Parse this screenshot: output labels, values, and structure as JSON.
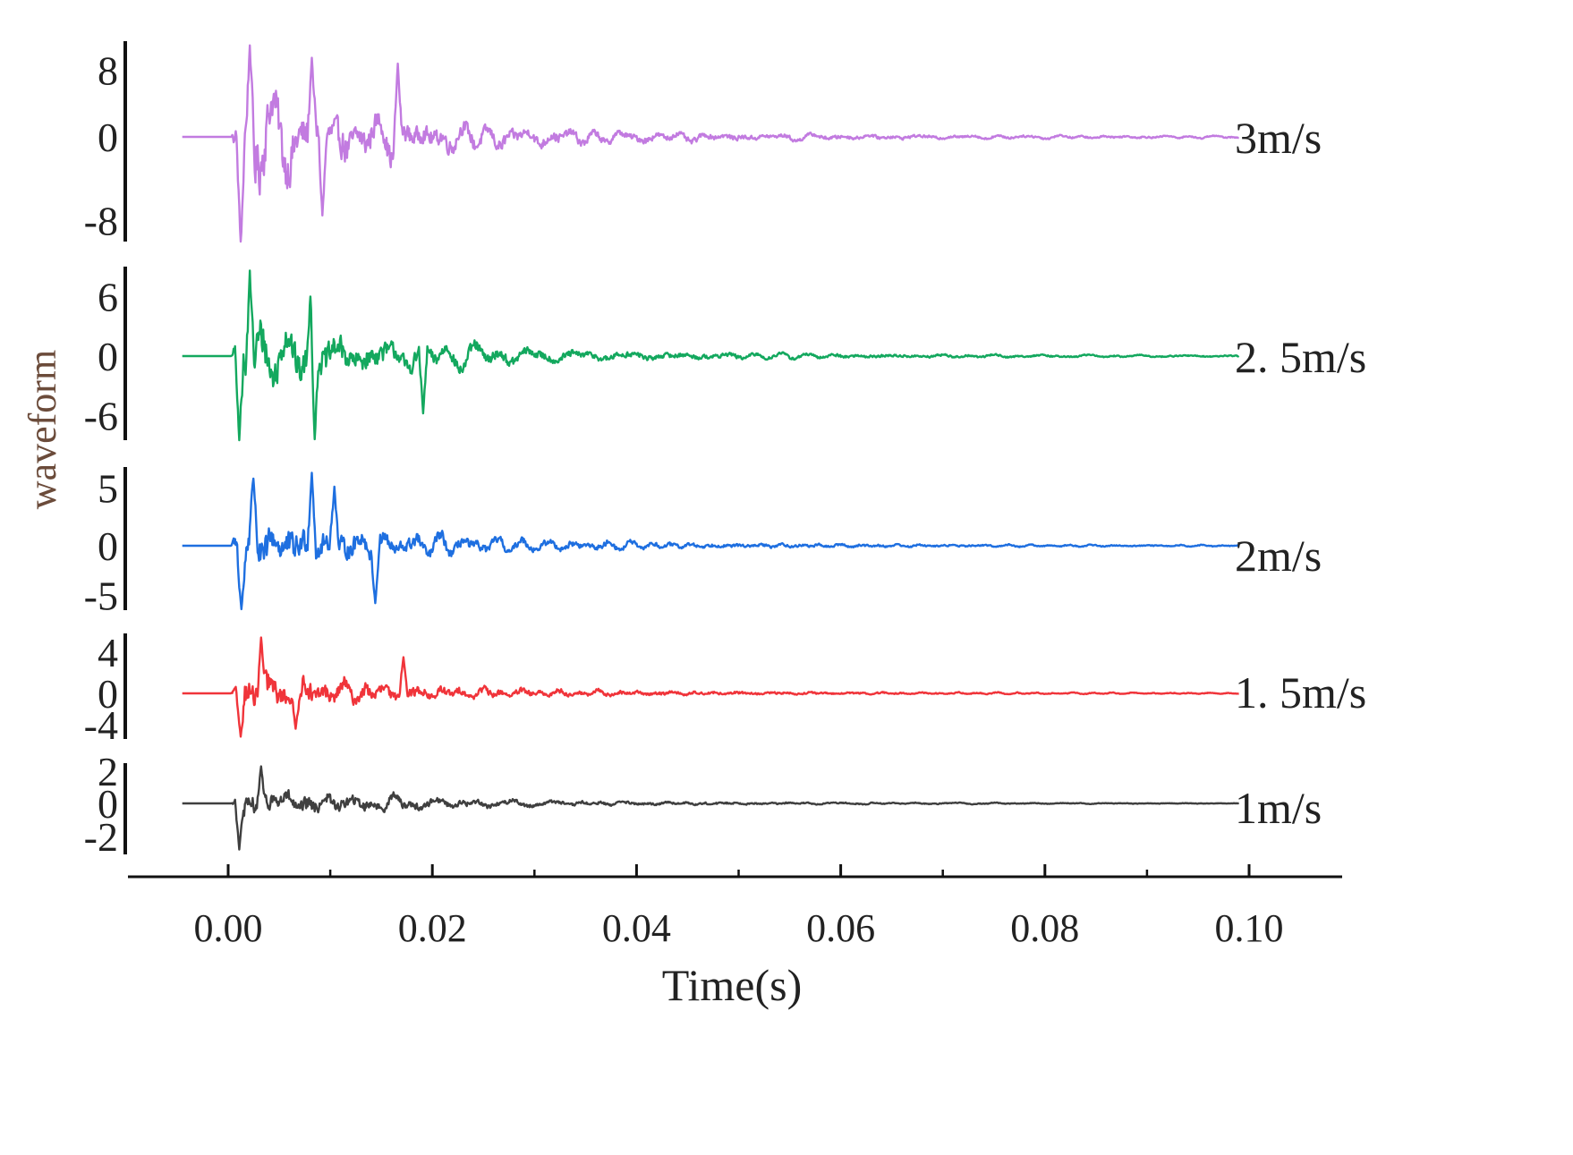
{
  "chart_data": {
    "type": "line",
    "xlabel": "Time(s)",
    "ylabel": "waveform",
    "xlim": [
      -0.01,
      0.11
    ],
    "x_ticks": [
      0.0,
      0.02,
      0.04,
      0.06,
      0.08,
      0.1
    ],
    "x_tick_labels": [
      "0.00",
      "0.02",
      "0.04",
      "0.06",
      "0.08",
      "0.10"
    ],
    "x_range": [
      -0.0045,
      0.099
    ],
    "onset_time": 0.0003,
    "grid": false,
    "legend": "none; each series labelled at its right end",
    "series": [
      {
        "name": "3m/s",
        "label": "3m/s",
        "color": "#c27be0",
        "peak_amplitude": 11,
        "ylim": [
          -10,
          11.5
        ],
        "y_ticks": [
          -8,
          0,
          8
        ],
        "y_tick_labels": [
          "-8",
          "0",
          "8"
        ],
        "peaks": [
          {
            "x": 0.0021,
            "y": 11
          },
          {
            "x": 0.0012,
            "y": -10.5
          },
          {
            "x": 0.0082,
            "y": 9.5
          },
          {
            "x": 0.0166,
            "y": 8.8
          },
          {
            "x": 0.0092,
            "y": -7.5
          }
        ]
      },
      {
        "name": "2.5m/s",
        "label": "2. 5m/s",
        "color": "#13a85e",
        "peak_amplitude": 8.6,
        "ylim": [
          -8.5,
          9
        ],
        "y_ticks": [
          -6,
          0,
          6
        ],
        "y_tick_labels": [
          "-6",
          "0",
          "6"
        ],
        "peaks": [
          {
            "x": 0.0021,
            "y": 8.6
          },
          {
            "x": 0.0011,
            "y": -8.5
          },
          {
            "x": 0.0081,
            "y": 7.3
          },
          {
            "x": 0.0085,
            "y": -8.4
          },
          {
            "x": 0.0191,
            "y": -5.8
          }
        ]
      },
      {
        "name": "2m/s",
        "label": "2m/s",
        "color": "#1e6fe0",
        "peak_amplitude": 6.3,
        "ylim": [
          -6.5,
          6.8
        ],
        "y_ticks": [
          -5,
          0,
          5
        ],
        "y_tick_labels": [
          "-5",
          "0",
          "5"
        ],
        "peaks": [
          {
            "x": 0.0025,
            "y": 5.8
          },
          {
            "x": 0.0013,
            "y": -6.4
          },
          {
            "x": 0.0082,
            "y": 6.3
          },
          {
            "x": 0.0104,
            "y": 5.1
          },
          {
            "x": 0.0144,
            "y": -5.8
          }
        ]
      },
      {
        "name": "1.5m/s",
        "label": "1. 5m/s",
        "color": "#f0343a",
        "peak_amplitude": 5.4,
        "ylim": [
          -5.8,
          5.8
        ],
        "y_ticks": [
          -4,
          0,
          4
        ],
        "y_tick_labels": [
          "-4",
          "0",
          "4"
        ],
        "peaks": [
          {
            "x": 0.0032,
            "y": 5.4
          },
          {
            "x": 0.0012,
            "y": -5.5
          },
          {
            "x": 0.0066,
            "y": -4.5
          },
          {
            "x": 0.0172,
            "y": 3.5
          }
        ]
      },
      {
        "name": "1m/s",
        "label": "1m/s",
        "color": "#3f3f3f",
        "peak_amplitude": 2.3,
        "ylim": [
          -3.1,
          2.5
        ],
        "y_ticks": [
          -2,
          0,
          2
        ],
        "y_tick_labels": [
          "-2",
          "0",
          "2"
        ],
        "peaks": [
          {
            "x": 0.0032,
            "y": 2.3
          },
          {
            "x": 0.0011,
            "y": -2.8
          }
        ]
      }
    ]
  }
}
